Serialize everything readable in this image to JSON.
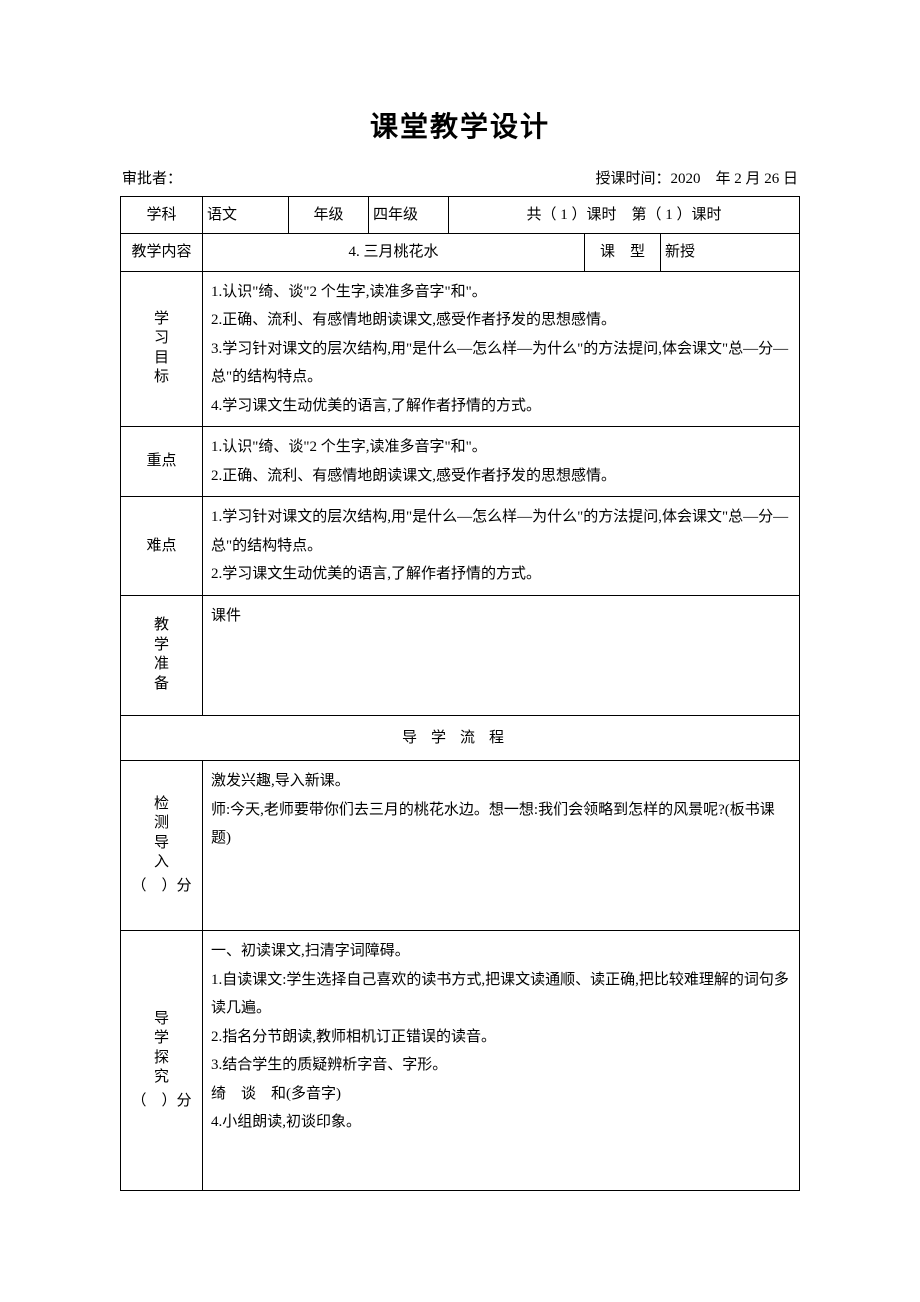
{
  "title": "课堂教学设计",
  "header": {
    "approver_label": "审批者：",
    "time_label": "授课时间：",
    "time_value": "2020 年 2 月 26 日"
  },
  "row1": {
    "subject_label": "学科",
    "subject_value": "语文",
    "grade_label": "年级",
    "grade_value": "四年级",
    "periods_text": "共（ 1 ）课时 第（ 1 ）课时"
  },
  "row2": {
    "content_label": "教学内容",
    "content_value": "4. 三月桃花水",
    "type_label": "课 型",
    "type_value": "新授"
  },
  "objectives": {
    "label": "学习目标",
    "text": "1.认识\"绮、谈\"2 个生字,读准多音字\"和\"。\n2.正确、流利、有感情地朗读课文,感受作者抒发的思想感情。\n3.学习针对课文的层次结构,用\"是什么—怎么样—为什么\"的方法提问,体会课文\"总—分—总\"的结构特点。\n4.学习课文生动优美的语言,了解作者抒情的方式。"
  },
  "keypoint": {
    "label": "重点",
    "text": "1.认识\"绮、谈\"2 个生字,读准多音字\"和\"。\n2.正确、流利、有感情地朗读课文,感受作者抒发的思想感情。"
  },
  "difficulty": {
    "label": "难点",
    "text": "1.学习针对课文的层次结构,用\"是什么—怎么样—为什么\"的方法提问,体会课文\"总—分—总\"的结构特点。\n2.学习课文生动优美的语言,了解作者抒情的方式。"
  },
  "prep": {
    "label": "教学准备",
    "text": "课件"
  },
  "flow_header": "导学流程",
  "section1": {
    "label_lines": [
      "检",
      "测",
      "导",
      "入"
    ],
    "minutes": "（ ）分",
    "text": "激发兴趣,导入新课。\n师:今天,老师要带你们去三月的桃花水边。想一想:我们会领略到怎样的风景呢?(板书课题)"
  },
  "section2": {
    "label_lines": [
      "导",
      "学",
      "探",
      "究"
    ],
    "minutes": "（ ）分",
    "text": "一、初读课文,扫清字词障碍。\n1.自读课文:学生选择自己喜欢的读书方式,把课文读通顺、读正确,把比较难理解的词句多读几遍。\n2.指名分节朗读,教师相机订正错误的读音。\n3.结合学生的质疑辨析字音、字形。\n绮 谈 和(多音字)\n4.小组朗读,初谈印象。"
  }
}
